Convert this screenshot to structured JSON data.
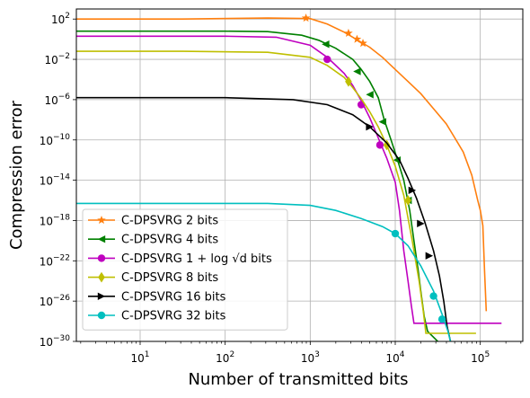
{
  "chart_data": {
    "type": "line",
    "title": "",
    "xlabel": "Number of transmitted bits",
    "ylabel": "Compression error",
    "xscale": "log",
    "yscale": "log",
    "xlim_log10": [
      0.25,
      5.5
    ],
    "ylim_log10": [
      -30,
      3
    ],
    "grid": true,
    "legend_position": "lower-left",
    "x_ticks": [
      {
        "text": "10",
        "sup": "1",
        "log": 1
      },
      {
        "text": "10",
        "sup": "2",
        "log": 2
      },
      {
        "text": "10",
        "sup": "3",
        "log": 3
      },
      {
        "text": "10",
        "sup": "4",
        "log": 4
      },
      {
        "text": "10",
        "sup": "5",
        "log": 5
      }
    ],
    "y_ticks": [
      {
        "text": "10",
        "sup": "2",
        "log": 2
      },
      {
        "text": "10",
        "sup": "−2",
        "log": -2
      },
      {
        "text": "10",
        "sup": "−6",
        "log": -6
      },
      {
        "text": "10",
        "sup": "−10",
        "log": -10
      },
      {
        "text": "10",
        "sup": "−14",
        "log": -14
      },
      {
        "text": "10",
        "sup": "−18",
        "log": -18
      },
      {
        "text": "10",
        "sup": "−22",
        "log": -22
      },
      {
        "text": "10",
        "sup": "−26",
        "log": -26
      },
      {
        "text": "10",
        "sup": "−30",
        "log": -30
      }
    ],
    "series": [
      {
        "name": "C-DPSVRG 2 bits",
        "color": "#ff7f0e",
        "marker": "star",
        "points_log10": [
          [
            0.25,
            2.0
          ],
          [
            1.5,
            2.0
          ],
          [
            2.5,
            2.1
          ],
          [
            3.0,
            2.05
          ],
          [
            3.2,
            1.5
          ],
          [
            3.4,
            0.7
          ],
          [
            3.5,
            0.2
          ],
          [
            3.6,
            -0.3
          ],
          [
            3.7,
            -0.8
          ],
          [
            3.85,
            -1.8
          ],
          [
            4.0,
            -3.0
          ],
          [
            4.15,
            -4.2
          ],
          [
            4.3,
            -5.4
          ],
          [
            4.45,
            -6.9
          ],
          [
            4.6,
            -8.4
          ],
          [
            4.7,
            -9.8
          ],
          [
            4.8,
            -11.2
          ],
          [
            4.9,
            -13.5
          ],
          [
            4.97,
            -16.0
          ],
          [
            5.0,
            -17.0
          ],
          [
            5.03,
            -18.5
          ],
          [
            5.05,
            -23.0
          ],
          [
            5.07,
            -27.0
          ]
        ],
        "marker_points_log10": [
          [
            2.95,
            2.1
          ],
          [
            3.45,
            0.6
          ],
          [
            3.55,
            0.0
          ],
          [
            3.62,
            -0.4
          ]
        ]
      },
      {
        "name": "C-DPSVRG 4 bits",
        "color": "#008000",
        "marker": "triangle-left",
        "points_log10": [
          [
            0.25,
            0.8
          ],
          [
            2.0,
            0.8
          ],
          [
            2.5,
            0.75
          ],
          [
            2.9,
            0.4
          ],
          [
            3.1,
            -0.1
          ],
          [
            3.3,
            -0.9
          ],
          [
            3.5,
            -2.0
          ],
          [
            3.6,
            -3.0
          ],
          [
            3.7,
            -4.2
          ],
          [
            3.8,
            -5.8
          ],
          [
            3.87,
            -8.0
          ],
          [
            3.95,
            -10.0
          ],
          [
            4.02,
            -11.8
          ],
          [
            4.1,
            -14.0
          ],
          [
            4.17,
            -17.0
          ],
          [
            4.22,
            -20.0
          ],
          [
            4.27,
            -23.0
          ],
          [
            4.3,
            -25.0
          ],
          [
            4.34,
            -27.5
          ],
          [
            4.38,
            -29.0
          ],
          [
            4.5,
            -30.0
          ]
        ],
        "marker_points_log10": [
          [
            3.18,
            -0.5
          ],
          [
            3.55,
            -3.2
          ],
          [
            3.7,
            -5.5
          ],
          [
            3.85,
            -8.2
          ],
          [
            4.02,
            -12.0
          ],
          [
            4.15,
            -16.0
          ]
        ]
      },
      {
        "name": "C-DPSVRG 1+log√d bits",
        "color": "#bf00bf",
        "marker": "circle",
        "points_log10": [
          [
            0.25,
            0.3
          ],
          [
            2.0,
            0.3
          ],
          [
            2.6,
            0.2
          ],
          [
            3.0,
            -0.6
          ],
          [
            3.2,
            -1.8
          ],
          [
            3.4,
            -3.4
          ],
          [
            3.5,
            -4.6
          ],
          [
            3.6,
            -6.1
          ],
          [
            3.7,
            -7.8
          ],
          [
            3.8,
            -9.8
          ],
          [
            3.9,
            -11.8
          ],
          [
            4.0,
            -14.2
          ],
          [
            4.05,
            -17.0
          ],
          [
            4.1,
            -21.0
          ],
          [
            4.15,
            -24.0
          ],
          [
            4.19,
            -26.5
          ],
          [
            4.22,
            -28.2
          ],
          [
            4.6,
            -28.2
          ],
          [
            5.25,
            -28.2
          ]
        ],
        "marker_points_log10": [
          [
            3.2,
            -2.0
          ],
          [
            3.6,
            -6.5
          ],
          [
            3.82,
            -10.5
          ]
        ]
      },
      {
        "name": "C-DPSVRG 8 bits",
        "color": "#bfbf00",
        "marker": "diamond",
        "points_log10": [
          [
            0.25,
            -1.2
          ],
          [
            1.5,
            -1.2
          ],
          [
            2.5,
            -1.3
          ],
          [
            3.0,
            -1.8
          ],
          [
            3.2,
            -2.6
          ],
          [
            3.4,
            -3.8
          ],
          [
            3.5,
            -4.8
          ],
          [
            3.6,
            -5.9
          ],
          [
            3.7,
            -7.2
          ],
          [
            3.8,
            -8.7
          ],
          [
            3.9,
            -10.5
          ],
          [
            4.0,
            -12.6
          ],
          [
            4.1,
            -15.5
          ],
          [
            4.2,
            -20.0
          ],
          [
            4.28,
            -24.0
          ],
          [
            4.33,
            -27.0
          ],
          [
            4.36,
            -29.2
          ],
          [
            4.6,
            -29.2
          ],
          [
            4.95,
            -29.2
          ]
        ],
        "marker_points_log10": [
          [
            3.45,
            -4.2
          ],
          [
            3.9,
            -10.5
          ],
          [
            4.15,
            -16.0
          ]
        ]
      },
      {
        "name": "C-DPSVRG 16 bits",
        "color": "#000000",
        "marker": "triangle-right",
        "points_log10": [
          [
            0.25,
            -5.8
          ],
          [
            2.0,
            -5.8
          ],
          [
            2.8,
            -6.0
          ],
          [
            3.2,
            -6.5
          ],
          [
            3.5,
            -7.5
          ],
          [
            3.7,
            -8.7
          ],
          [
            3.9,
            -10.3
          ],
          [
            4.05,
            -12.0
          ],
          [
            4.15,
            -13.8
          ],
          [
            4.25,
            -15.8
          ],
          [
            4.35,
            -18.2
          ],
          [
            4.45,
            -21.0
          ],
          [
            4.52,
            -23.5
          ],
          [
            4.57,
            -26.0
          ],
          [
            4.61,
            -28.5
          ],
          [
            4.65,
            -30.0
          ]
        ],
        "marker_points_log10": [
          [
            3.7,
            -8.7
          ],
          [
            4.2,
            -15.0
          ],
          [
            4.3,
            -18.3
          ],
          [
            4.4,
            -21.5
          ]
        ]
      },
      {
        "name": "C-DPSVRG 32 bits",
        "color": "#00bfbf",
        "marker": "circle",
        "points_log10": [
          [
            0.25,
            -16.3
          ],
          [
            2.5,
            -16.3
          ],
          [
            3.0,
            -16.5
          ],
          [
            3.3,
            -17.0
          ],
          [
            3.6,
            -17.8
          ],
          [
            3.85,
            -18.6
          ],
          [
            4.0,
            -19.3
          ],
          [
            4.15,
            -20.5
          ],
          [
            4.3,
            -22.5
          ],
          [
            4.45,
            -25.0
          ],
          [
            4.55,
            -27.3
          ],
          [
            4.62,
            -29.0
          ],
          [
            4.65,
            -30.0
          ]
        ],
        "marker_points_log10": [
          [
            4.0,
            -19.3
          ],
          [
            4.45,
            -25.5
          ],
          [
            4.55,
            -27.8
          ]
        ]
      }
    ],
    "legend": [
      {
        "label": "C-DPSVRG 2 bits"
      },
      {
        "label": "C-DPSVRG 4 bits"
      },
      {
        "label": "C-DPSVRG 1 + log √d bits"
      },
      {
        "label": "C-DPSVRG 8 bits"
      },
      {
        "label": "C-DPSVRG 16 bits"
      },
      {
        "label": "C-DPSVRG 32 bits"
      }
    ]
  }
}
